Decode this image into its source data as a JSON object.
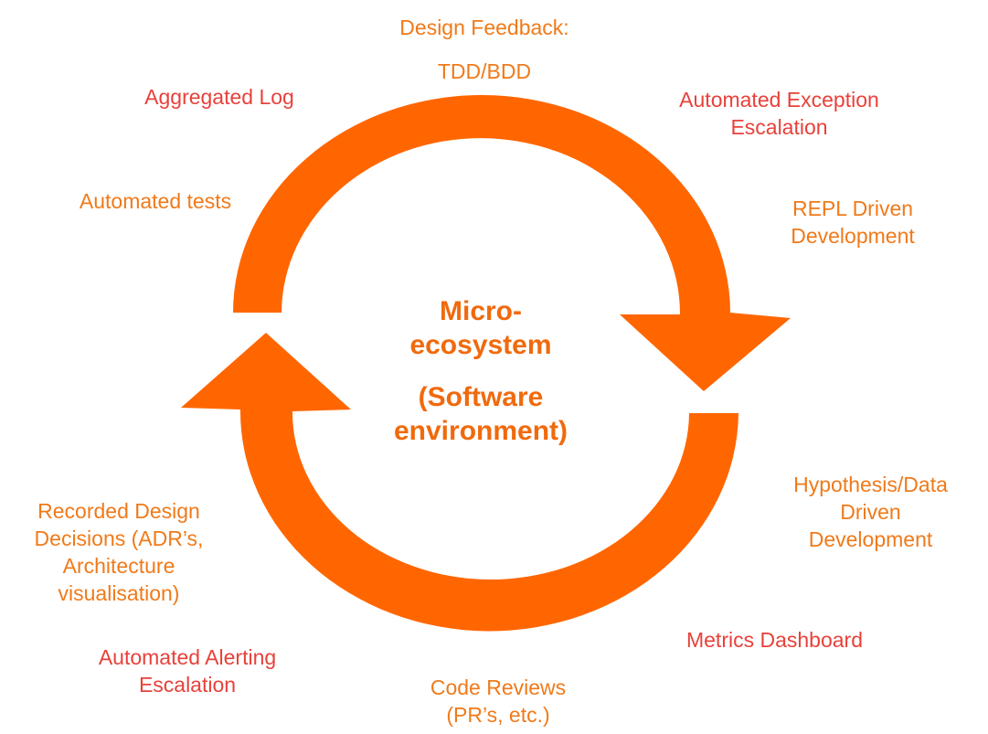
{
  "colors": {
    "arrow": "#ff6600",
    "label_orange": "#f07a1a",
    "label_red": "#e8413a",
    "center_text": "#f06a0d"
  },
  "center": {
    "line1": "Micro-",
    "line2": "ecosystem",
    "line3": "(Software",
    "line4": "environment)"
  },
  "labels": {
    "design_feedback": {
      "line1": "Design Feedback:",
      "line2": "TDD/BDD"
    },
    "aggregated_log": "Aggregated Log",
    "automated_exception": {
      "line1": "Automated Exception",
      "line2": "Escalation"
    },
    "automated_tests": "Automated tests",
    "repl": {
      "line1": "REPL Driven",
      "line2": "Development"
    },
    "hypothesis": {
      "line1": "Hypothesis/Data",
      "line2": "Driven",
      "line3": "Development"
    },
    "recorded_design": {
      "line1": "Recorded Design",
      "line2": "Decisions (ADR’s,",
      "line3": "Architecture",
      "line4": "visualisation)"
    },
    "metrics_dashboard": "Metrics Dashboard",
    "automated_alerting": {
      "line1": "Automated Alerting",
      "line2": "Escalation"
    },
    "code_reviews": {
      "line1": "Code Reviews",
      "line2": "(PR’s, etc.)"
    }
  }
}
